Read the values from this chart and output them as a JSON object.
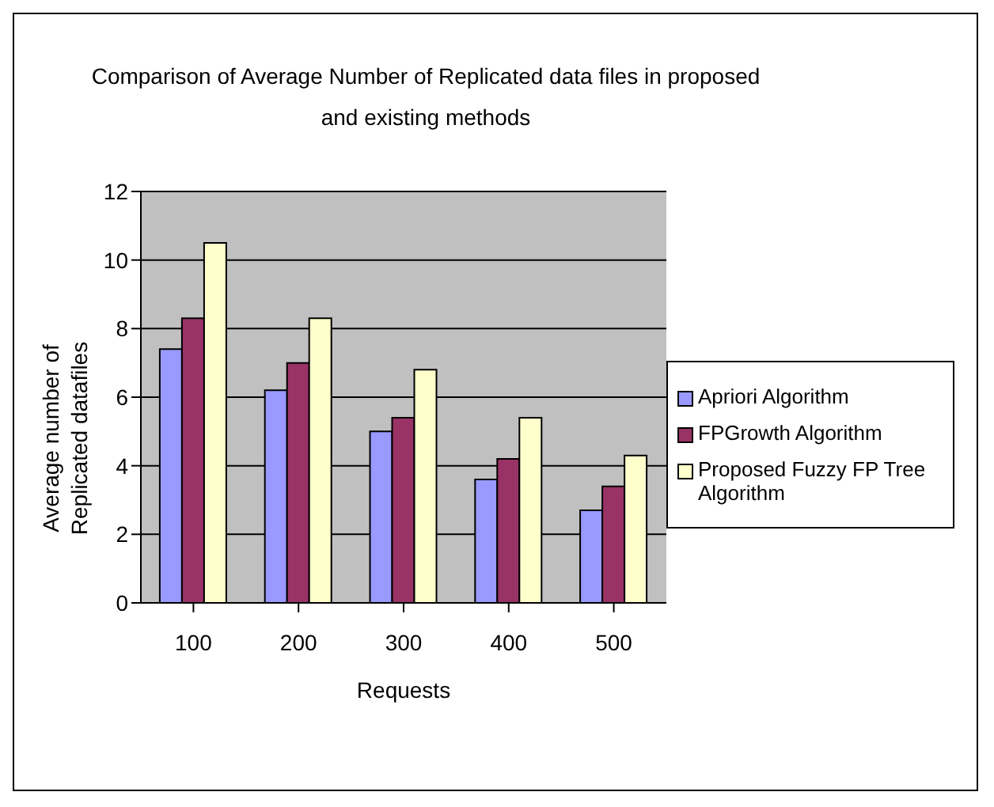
{
  "chart_data": {
    "type": "bar",
    "title": "Comparison of Average Number of Replicated data files in proposed and existing methods",
    "xlabel": "Requests",
    "ylabel": "Average number of Replicated datafiles",
    "categories": [
      "100",
      "200",
      "300",
      "400",
      "500"
    ],
    "series": [
      {
        "name": "Apriori Algorithm",
        "color": "#9999ff",
        "values": [
          7.4,
          6.2,
          5.0,
          3.6,
          2.7
        ]
      },
      {
        "name": "FPGrowth Algorithm",
        "color": "#993366",
        "values": [
          8.3,
          7.0,
          5.4,
          4.2,
          3.4
        ]
      },
      {
        "name": "Proposed Fuzzy FP Tree Algorithm",
        "color": "#ffffcc",
        "values": [
          10.5,
          8.3,
          6.8,
          5.4,
          4.3
        ]
      }
    ],
    "ylim": [
      0,
      12
    ],
    "yticks": [
      0,
      2,
      4,
      6,
      8,
      10,
      12
    ],
    "grid": "y",
    "legend": "right"
  }
}
